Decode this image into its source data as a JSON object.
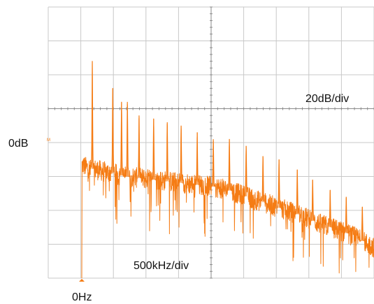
{
  "chart_data": {
    "type": "line",
    "title": "",
    "y_reference_label": "0dB",
    "x_origin_label": "0Hz",
    "y_scale_label": "20dB/div",
    "x_scale_label": "500kHz/div",
    "marker_glyph": "M",
    "x_unit": "kHz",
    "y_unit": "dB",
    "x_range": [
      0,
      2000
    ],
    "y_range": [
      -100,
      60
    ],
    "y_divisions": 8,
    "grid": true,
    "colors": {
      "trace": "#f57c14",
      "marker": "#f57c14",
      "grid": "#c8c8c8",
      "axis": "#8a8a8a",
      "background": "#ffffff"
    },
    "noise_floor": [
      [
        0,
        -33
      ],
      [
        40,
        -35
      ],
      [
        100,
        -36
      ],
      [
        200,
        -38
      ],
      [
        300,
        -40
      ],
      [
        400,
        -41
      ],
      [
        500,
        -42
      ],
      [
        600,
        -43
      ],
      [
        700,
        -44
      ],
      [
        800,
        -45
      ],
      [
        900,
        -46
      ],
      [
        1000,
        -48
      ],
      [
        1100,
        -51
      ],
      [
        1200,
        -54
      ],
      [
        1300,
        -57
      ],
      [
        1400,
        -60
      ],
      [
        1500,
        -63
      ],
      [
        1600,
        -67
      ],
      [
        1700,
        -70
      ],
      [
        1800,
        -73
      ],
      [
        1900,
        -77
      ],
      [
        2000,
        -82
      ]
    ],
    "peaks": [
      {
        "x": 72,
        "y": 28
      },
      {
        "x": 212,
        "y": 12
      },
      {
        "x": 272,
        "y": 4
      },
      {
        "x": 312,
        "y": 4
      },
      {
        "x": 392,
        "y": -4
      },
      {
        "x": 492,
        "y": -6
      },
      {
        "x": 585,
        "y": -8
      },
      {
        "x": 680,
        "y": -10
      },
      {
        "x": 790,
        "y": -14
      },
      {
        "x": 900,
        "y": -18
      },
      {
        "x": 1010,
        "y": -18
      },
      {
        "x": 1125,
        "y": -22
      },
      {
        "x": 1240,
        "y": -28
      },
      {
        "x": 1350,
        "y": -30
      },
      {
        "x": 1475,
        "y": -36
      },
      {
        "x": 1580,
        "y": -42
      },
      {
        "x": 1700,
        "y": -48
      },
      {
        "x": 1810,
        "y": -52
      },
      {
        "x": 1920,
        "y": -58
      }
    ]
  }
}
